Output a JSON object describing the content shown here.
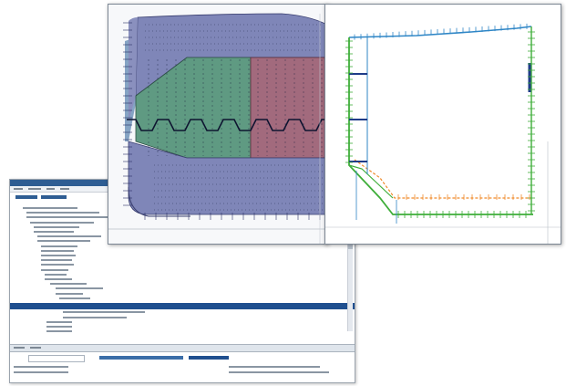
{
  "colors": {
    "plate_purple": "#7f86b8",
    "plate_green": "#5f9a82",
    "plate_red": "#a26a7d",
    "plate_blue": "#86a4c4",
    "stiffener_line": "#1a2040",
    "frame_green": "#3fae3a",
    "frame_blue": "#2f86c6",
    "frame_orange": "#f08a2a",
    "frame_navy": "#1f3c88",
    "selection": "#1f4f8f"
  },
  "icons": {
    "tree_panel": "tree-outline-icon",
    "hull_view": "hull-plate-drawing-icon",
    "section_view": "cross-section-drawing-icon"
  }
}
